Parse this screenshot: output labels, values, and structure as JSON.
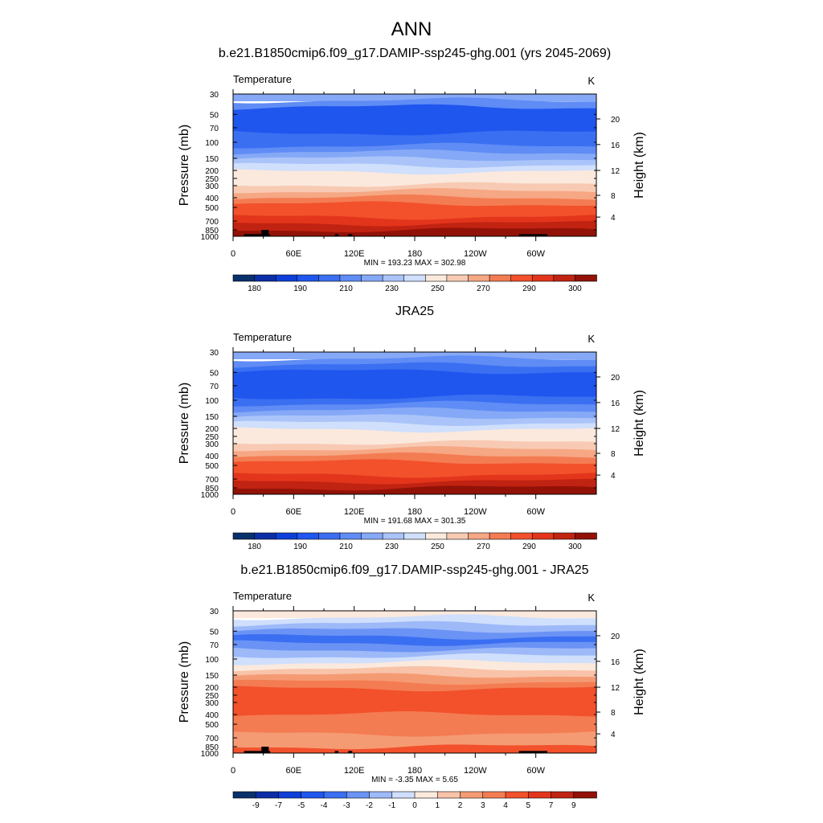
{
  "figure": {
    "title": "ANN",
    "colors": {
      "temp_palette": [
        "#08306b",
        "#0b2ea6",
        "#0d3fd8",
        "#1f56ee",
        "#3b6ff2",
        "#5f8cf5",
        "#86a9f7",
        "#aac4fa",
        "#cfdffc",
        "#fbe9dd",
        "#f8cab3",
        "#f6a784",
        "#f47c52",
        "#f2512c",
        "#e3351b",
        "#c12312",
        "#921208"
      ],
      "diff_palette": [
        "#08306b",
        "#0b2ea6",
        "#0d3fd8",
        "#1f56ee",
        "#3b6ff2",
        "#6a93f5",
        "#9db9f8",
        "#cfdffc",
        "#fbe9dd",
        "#f8c3a8",
        "#f59b74",
        "#f47c52",
        "#f2512c",
        "#e3351b",
        "#c12312",
        "#921208"
      ]
    }
  },
  "chart_data": [
    {
      "type": "heatmap",
      "title": "b.e21.B1850cmip6.f09_g17.DAMIP-ssp245-ghg.001 (yrs 2045-2069)",
      "left_label": "Temperature",
      "units": "K",
      "ylabel": "Pressure (mb)",
      "y2label": "Height (km)",
      "x_ticks": [
        "0",
        "60E",
        "120E",
        "180",
        "120W",
        "60W"
      ],
      "y_ticks": [
        "30",
        "50",
        "70",
        "100",
        "150",
        "200",
        "250",
        "300",
        "400",
        "500",
        "700",
        "850",
        "1000"
      ],
      "y2_ticks": [
        "20",
        "16",
        "12",
        "8",
        "4"
      ],
      "stats": "MIN = 193.23  MAX = 302.98",
      "colorbar_labels": [
        "180",
        "190",
        "210",
        "230",
        "250",
        "270",
        "290",
        "300"
      ],
      "palette": "temp_palette",
      "levels_top_to_bottom": [
        6,
        5,
        3,
        3,
        3,
        3,
        4,
        4,
        5,
        6,
        7,
        8,
        9,
        9,
        10,
        11,
        12,
        13,
        13,
        14,
        15,
        16
      ],
      "topography": true
    },
    {
      "type": "heatmap",
      "title": "JRA25",
      "left_label": "Temperature",
      "units": "K",
      "ylabel": "Pressure (mb)",
      "y2label": "Height (km)",
      "x_ticks": [
        "0",
        "60E",
        "120E",
        "180",
        "120W",
        "60W"
      ],
      "y_ticks": [
        "30",
        "50",
        "70",
        "100",
        "150",
        "200",
        "250",
        "300",
        "400",
        "500",
        "700",
        "850",
        "1000"
      ],
      "y2_ticks": [
        "20",
        "16",
        "12",
        "8",
        "4"
      ],
      "stats": "MIN = 191.68  MAX = 301.35",
      "colorbar_labels": [
        "180",
        "190",
        "210",
        "230",
        "250",
        "270",
        "290",
        "300"
      ],
      "palette": "temp_palette",
      "levels_top_to_bottom": [
        6,
        5,
        4,
        3,
        3,
        3,
        3,
        4,
        5,
        6,
        7,
        8,
        9,
        9,
        10,
        11,
        12,
        13,
        13,
        14,
        15,
        16
      ],
      "topography": false
    },
    {
      "type": "heatmap",
      "title": "b.e21.B1850cmip6.f09_g17.DAMIP-ssp245-ghg.001 - JRA25",
      "left_label": "Temperature",
      "units": "K",
      "ylabel": "Pressure (mb)",
      "y2label": "Height (km)",
      "x_ticks": [
        "0",
        "60E",
        "120E",
        "180",
        "120W",
        "60W"
      ],
      "y_ticks": [
        "30",
        "50",
        "70",
        "100",
        "150",
        "200",
        "250",
        "300",
        "400",
        "500",
        "700",
        "850",
        "1000"
      ],
      "y2_ticks": [
        "20",
        "16",
        "12",
        "8",
        "4"
      ],
      "stats": "MIN =  -3.35  MAX =   5.65",
      "colorbar_labels": [
        "-9",
        "-7",
        "-5",
        "-4",
        "-3",
        "-2",
        "-1",
        "0",
        "1",
        "2",
        "3",
        "4",
        "5",
        "7",
        "9"
      ],
      "palette": "diff_palette",
      "levels_top_to_bottom": [
        8,
        7,
        6,
        5,
        4,
        5,
        6,
        7,
        8,
        9,
        10,
        11,
        12,
        12,
        12,
        12,
        11,
        11,
        11,
        10,
        10,
        12
      ],
      "topography": true
    }
  ]
}
